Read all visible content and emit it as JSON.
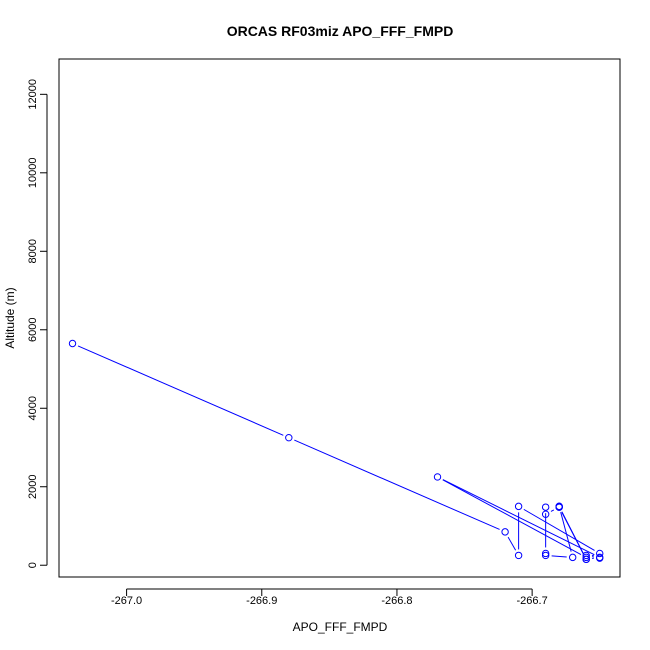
{
  "chart_data": {
    "type": "line",
    "title": "ORCAS RF03miz APO_FFF_FMPD",
    "xlabel": "APO_FFF_FMPD",
    "ylabel": "Altitude (m)",
    "xlim": [
      -267.05,
      -266.635
    ],
    "ylim": [
      -300,
      12900
    ],
    "xticks": [
      -267.0,
      -266.9,
      -266.8,
      -266.7
    ],
    "xtick_labels": [
      "-267.0",
      "-266.9",
      "-266.8",
      "-266.7"
    ],
    "yticks": [
      0,
      2000,
      4000,
      6000,
      8000,
      10000,
      12000
    ],
    "ytick_labels": [
      "0",
      "2000",
      "4000",
      "6000",
      "8000",
      "10000",
      "12000"
    ],
    "grid": false,
    "series_color": "#0000ff",
    "series": [
      {
        "style": "line+markers",
        "x": [
          -267.04,
          -266.88,
          -266.72,
          -266.71,
          -266.71,
          -266.65,
          -266.66,
          -266.77,
          -266.65,
          -266.66,
          -266.68,
          -266.68,
          -266.69,
          -266.69,
          -266.69,
          -266.69,
          -266.67,
          -266.68,
          -266.68,
          -266.66,
          -266.66,
          -266.65
        ],
        "y": [
          5650,
          3250,
          850,
          250,
          1500,
          300,
          200,
          2250,
          200,
          150,
          1500,
          1480,
          1300,
          1480,
          300,
          250,
          200,
          1500,
          1480,
          150,
          250,
          180
        ]
      }
    ]
  }
}
